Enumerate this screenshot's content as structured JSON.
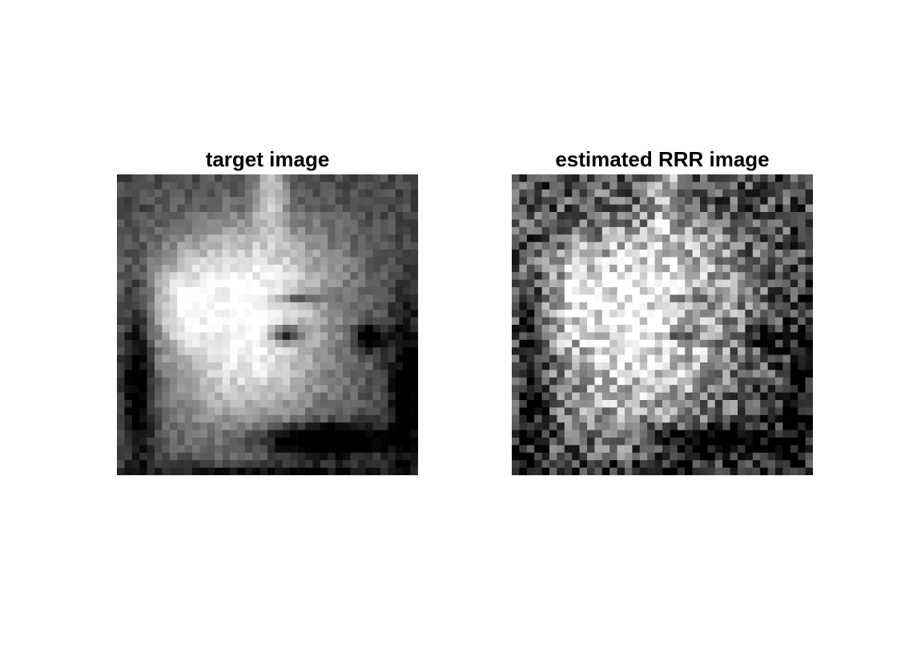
{
  "figure": {
    "colormap": "gray",
    "panels": [
      {
        "title": "target image",
        "content": "low-resolution grayscale portrait (pixelated face)"
      },
      {
        "title": "estimated RRR image",
        "content": "noisy reconstruction of the same pixelated face"
      }
    ]
  }
}
